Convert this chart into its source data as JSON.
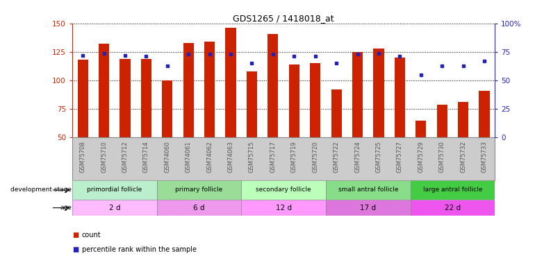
{
  "title": "GDS1265 / 1418018_at",
  "samples": [
    "GSM75708",
    "GSM75710",
    "GSM75712",
    "GSM75714",
    "GSM74060",
    "GSM74061",
    "GSM74062",
    "GSM74063",
    "GSM75715",
    "GSM75717",
    "GSM75719",
    "GSM75720",
    "GSM75722",
    "GSM75724",
    "GSM75725",
    "GSM75727",
    "GSM75729",
    "GSM75730",
    "GSM75732",
    "GSM75733"
  ],
  "counts": [
    118,
    132,
    119,
    119,
    100,
    133,
    134,
    146,
    108,
    141,
    114,
    115,
    92,
    125,
    128,
    120,
    65,
    79,
    81,
    91
  ],
  "percentiles": [
    72,
    74,
    72,
    71,
    63,
    73,
    73,
    73,
    65,
    73,
    71,
    71,
    65,
    73,
    74,
    71,
    55,
    63,
    63,
    67
  ],
  "ylim_left": [
    50,
    150
  ],
  "ylim_right": [
    0,
    100
  ],
  "yticks_left": [
    50,
    75,
    100,
    125,
    150
  ],
  "yticks_right": [
    0,
    25,
    50,
    75,
    100
  ],
  "bar_color": "#cc2200",
  "dot_color": "#2222bb",
  "groups": [
    {
      "label": "primordial follicle",
      "start": 0,
      "end": 4,
      "color": "#bbeecc"
    },
    {
      "label": "primary follicle",
      "start": 4,
      "end": 8,
      "color": "#99dd99"
    },
    {
      "label": "secondary follicle",
      "start": 8,
      "end": 12,
      "color": "#bbffbb"
    },
    {
      "label": "small antral follicle",
      "start": 12,
      "end": 16,
      "color": "#88dd88"
    },
    {
      "label": "large antral follicle",
      "start": 16,
      "end": 20,
      "color": "#44cc44"
    }
  ],
  "age_groups": [
    {
      "label": "2 d",
      "start": 0,
      "end": 4,
      "color": "#ffbbff"
    },
    {
      "label": "6 d",
      "start": 4,
      "end": 8,
      "color": "#ee99ee"
    },
    {
      "label": "12 d",
      "start": 8,
      "end": 12,
      "color": "#ff99ff"
    },
    {
      "label": "17 d",
      "start": 12,
      "end": 16,
      "color": "#dd77dd"
    },
    {
      "label": "22 d",
      "start": 16,
      "end": 20,
      "color": "#ee55ee"
    }
  ],
  "dev_stage_label": "development stage",
  "age_label": "age",
  "legend_count": "count",
  "legend_pct": "percentile rank within the sample",
  "tick_label_color": "#555555",
  "left_axis_color": "#cc2200",
  "right_axis_color": "#2222bb",
  "xlabel_bg": "#cccccc"
}
